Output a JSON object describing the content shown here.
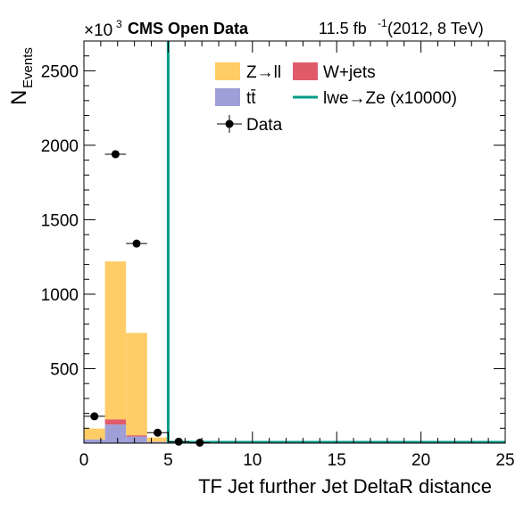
{
  "header": {
    "exponent_prefix": "×10",
    "exponent_power": "3",
    "experiment": "CMS Open Data",
    "lumi_value": "11.5 fb",
    "lumi_power": "-1",
    "lumi_rest": " (2012, 8 TeV)"
  },
  "axes": {
    "xlabel": "TF Jet further Jet DeltaR distance",
    "ylabel_main": "N",
    "ylabel_sub": "Events"
  },
  "legend": {
    "zll": "Z→ll",
    "wjets": "W+jets",
    "ttbar": "tt̄",
    "signal": "lwe→Ze (x10000)",
    "data": "Data"
  },
  "colors": {
    "zll": "#ffcc66",
    "wjets": "#e05b6a",
    "ttbar": "#9f9fd7",
    "signal": "#009b8a",
    "data": "#000000"
  },
  "chart_data": {
    "type": "bar",
    "stacked": true,
    "x_unit_scale_note_shown": false,
    "xlim": [
      0,
      25
    ],
    "ylim": [
      0,
      2700
    ],
    "y_multiplier": 1000,
    "x_ticks": [
      0,
      5,
      10,
      15,
      20,
      25
    ],
    "y_ticks": [
      500,
      1000,
      1500,
      2000,
      2500
    ],
    "bin_edges": [
      0,
      1.25,
      2.5,
      3.75,
      5,
      6.25,
      7.5,
      8.75,
      10,
      11.25,
      12.5,
      13.75,
      15,
      16.25,
      17.5,
      18.75,
      20,
      21.25,
      22.5,
      23.75,
      25
    ],
    "series": [
      {
        "name": "tt̄",
        "key": "ttbar",
        "values": [
          25,
          125,
          45,
          8,
          2,
          1,
          0,
          0,
          0,
          0,
          0,
          0,
          0,
          0,
          0,
          0,
          0,
          0,
          0,
          0
        ]
      },
      {
        "name": "W+jets",
        "key": "wjets",
        "values": [
          0,
          35,
          8,
          2,
          0,
          0,
          0,
          0,
          0,
          0,
          0,
          0,
          0,
          0,
          0,
          0,
          0,
          0,
          0,
          0
        ]
      },
      {
        "name": "Z→ll",
        "key": "zll",
        "values": [
          73,
          1060,
          687,
          28,
          6,
          2,
          0,
          0,
          0,
          0,
          0,
          0,
          0,
          0,
          0,
          0,
          0,
          0,
          0,
          0
        ]
      }
    ],
    "signal": {
      "name": "lwe→Ze (x10000)",
      "x": 5,
      "ymax": 2700
    },
    "data_points": [
      {
        "x": 0.625,
        "y": 180,
        "xerr": 0.625,
        "yerr": 3
      },
      {
        "x": 1.875,
        "y": 1940,
        "xerr": 0.625,
        "yerr": 4
      },
      {
        "x": 3.125,
        "y": 1340,
        "xerr": 0.625,
        "yerr": 4
      },
      {
        "x": 4.375,
        "y": 70,
        "xerr": 0.625,
        "yerr": 2
      },
      {
        "x": 5.625,
        "y": 10,
        "xerr": 0.625,
        "yerr": 1
      },
      {
        "x": 6.875,
        "y": 3,
        "xerr": 0.625,
        "yerr": 1
      }
    ]
  }
}
